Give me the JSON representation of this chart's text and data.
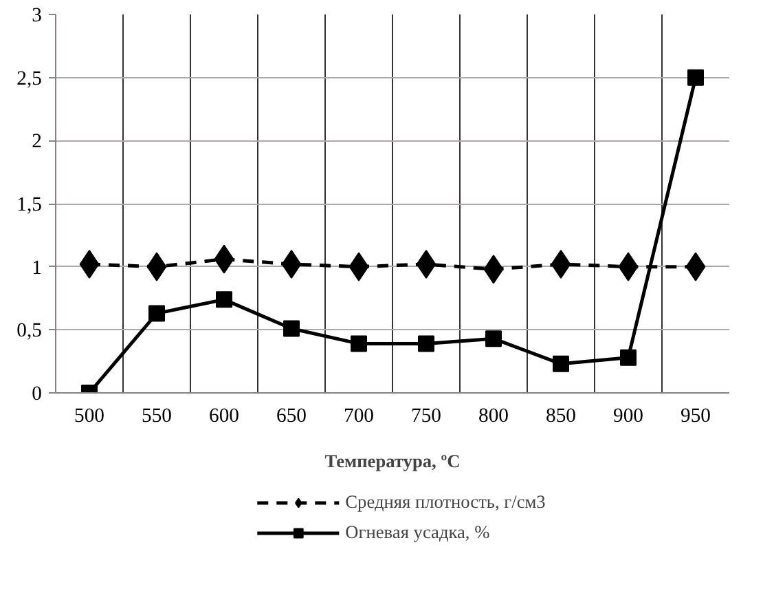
{
  "chart_data": {
    "type": "line",
    "xlabel": "Температура, ºC",
    "categories": [
      "500",
      "550",
      "600",
      "650",
      "700",
      "750",
      "800",
      "850",
      "900",
      "950"
    ],
    "series": [
      {
        "name": "Средняя плотность, г/см3",
        "color": "#000000",
        "marker": "diamond",
        "line_style": "dashed",
        "values": [
          1.02,
          1.0,
          1.06,
          1.02,
          1.0,
          1.02,
          0.98,
          1.02,
          1.0,
          1.0
        ]
      },
      {
        "name": "Огневая усадка, %",
        "color": "#000000",
        "marker": "square",
        "line_style": "solid",
        "values": [
          0,
          0.63,
          0.74,
          0.51,
          0.39,
          0.39,
          0.43,
          0.23,
          0.28,
          2.5
        ]
      }
    ],
    "ylim": [
      0,
      3
    ],
    "yticks": [
      0,
      {
        "value": 0.5,
        "label": "0,5"
      },
      1,
      {
        "value": 1.5,
        "label": "1,5"
      },
      2,
      {
        "value": 2.5,
        "label": "2,5"
      },
      3
    ],
    "grid": true,
    "legend": "bottom"
  }
}
